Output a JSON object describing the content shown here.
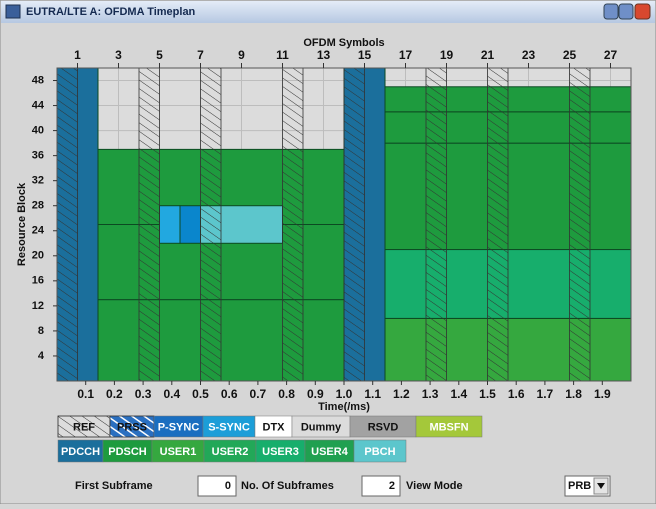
{
  "window": {
    "title": "EUTRA/LTE A: OFDMA Timeplan"
  },
  "chart_data": {
    "type": "timeplan",
    "x_label": "OFDM Symbols",
    "x2_label": "Time(/ms)",
    "y_label": "Resource Block",
    "xlim": [
      0,
      28
    ],
    "xticks": [
      1,
      3,
      5,
      7,
      9,
      11,
      13,
      15,
      17,
      19,
      21,
      23,
      25,
      27
    ],
    "x2lim": [
      0,
      2
    ],
    "x2ticks": [
      0.1,
      0.2,
      0.3,
      0.4,
      0.5,
      0.6,
      0.7,
      0.8,
      0.9,
      {
        "value": 1,
        "label": "1.0"
      },
      1.1,
      1.2,
      1.3,
      1.4,
      1.5,
      1.6,
      1.7,
      1.8,
      1.9
    ],
    "ylim": [
      0,
      50
    ],
    "yticks": [
      4,
      8,
      12,
      16,
      20,
      24,
      28,
      32,
      36,
      40,
      44,
      48
    ],
    "grid": true,
    "background": "#dcdcdc",
    "regions": [
      {
        "x": [
          0,
          2
        ],
        "y": [
          0,
          50
        ],
        "color": "#1b6f9c"
      },
      {
        "x": [
          2,
          14
        ],
        "y": [
          0,
          13
        ],
        "color": "#1e9b3e"
      },
      {
        "x": [
          2,
          14
        ],
        "y": [
          13,
          25
        ],
        "color": "#1e9b3e"
      },
      {
        "x": [
          2,
          14
        ],
        "y": [
          25,
          37
        ],
        "color": "#1e9b3e"
      },
      {
        "x": [
          5,
          6
        ],
        "y": [
          22,
          28
        ],
        "color": "#22a8e0"
      },
      {
        "x": [
          6,
          7
        ],
        "y": [
          22,
          28
        ],
        "color": "#0a86cc"
      },
      {
        "x": [
          7,
          11
        ],
        "y": [
          22,
          28
        ],
        "color": "#5cc6cc"
      },
      {
        "x": [
          14,
          16
        ],
        "y": [
          0,
          50
        ],
        "color": "#1b6f9c"
      },
      {
        "x": [
          16,
          28
        ],
        "y": [
          0,
          10
        ],
        "color": "#35a83f"
      },
      {
        "x": [
          16,
          28
        ],
        "y": [
          10,
          21
        ],
        "color": "#17ae6c"
      },
      {
        "x": [
          16,
          28
        ],
        "y": [
          21,
          38
        ],
        "color": "#1e9b3e"
      },
      {
        "x": [
          16,
          28
        ],
        "y": [
          38,
          43
        ],
        "color": "#1e9b3e"
      },
      {
        "x": [
          16,
          28
        ],
        "y": [
          43,
          47
        ],
        "color": "#1e9b3e"
      },
      {
        "x": [
          0,
          1
        ],
        "y": [
          0,
          50
        ],
        "hatch": true
      },
      {
        "x": [
          4,
          5
        ],
        "y": [
          0,
          50
        ],
        "hatch": true
      },
      {
        "x": [
          7,
          8
        ],
        "y": [
          0,
          50
        ],
        "hatch": true
      },
      {
        "x": [
          11,
          12
        ],
        "y": [
          0,
          50
        ],
        "hatch": true
      },
      {
        "x": [
          14,
          15
        ],
        "y": [
          0,
          50
        ],
        "hatch": true
      },
      {
        "x": [
          18,
          19
        ],
        "y": [
          0,
          50
        ],
        "hatch": true
      },
      {
        "x": [
          21,
          22
        ],
        "y": [
          0,
          50
        ],
        "hatch": true
      },
      {
        "x": [
          25,
          26
        ],
        "y": [
          0,
          50
        ],
        "hatch": true
      }
    ]
  },
  "legend": [
    [
      {
        "name": "REF",
        "color": "#dcdcdc",
        "text_color": "#111",
        "hatch": "dark"
      },
      {
        "name": "PRSS",
        "color": "#2a6fc0",
        "text_color": "#111",
        "hatch": "white"
      },
      {
        "name": "P-SYNC",
        "color": "#1a6ec0",
        "text_color": "#ffffff"
      },
      {
        "name": "S-SYNC",
        "color": "#1c9ed8",
        "text_color": "#ffffff"
      },
      {
        "name": "DTX",
        "color": "#ffffff",
        "text_color": "#111"
      },
      {
        "name": "Dummy",
        "color": "#dcdcdc",
        "text_color": "#111"
      },
      {
        "name": "RSVD",
        "color": "#a2a2a2",
        "text_color": "#111"
      },
      {
        "name": "MBSFN",
        "color": "#a4c83a",
        "text_color": "#ffffff"
      }
    ],
    [
      {
        "name": "PDCCH",
        "color": "#1b6f9c",
        "text_color": "#ffffff"
      },
      {
        "name": "PDSCH",
        "color": "#1e9b3e",
        "text_color": "#ffffff"
      },
      {
        "name": "USER1",
        "color": "#35a83f",
        "text_color": "#ffffff"
      },
      {
        "name": "USER2",
        "color": "#22a858",
        "text_color": "#ffffff"
      },
      {
        "name": "USER3",
        "color": "#17ae6c",
        "text_color": "#ffffff"
      },
      {
        "name": "USER4",
        "color": "#20a050",
        "text_color": "#ffffff"
      },
      {
        "name": "PBCH",
        "color": "#5cc6cc",
        "text_color": "#ffffff"
      }
    ]
  ],
  "controls": {
    "first_subframe_label": "First Subframe",
    "first_subframe": 0,
    "subframes_label": "No. Of Subframes",
    "subframes": 2,
    "view_mode_label": "View Mode",
    "view_mode": "PRB"
  }
}
